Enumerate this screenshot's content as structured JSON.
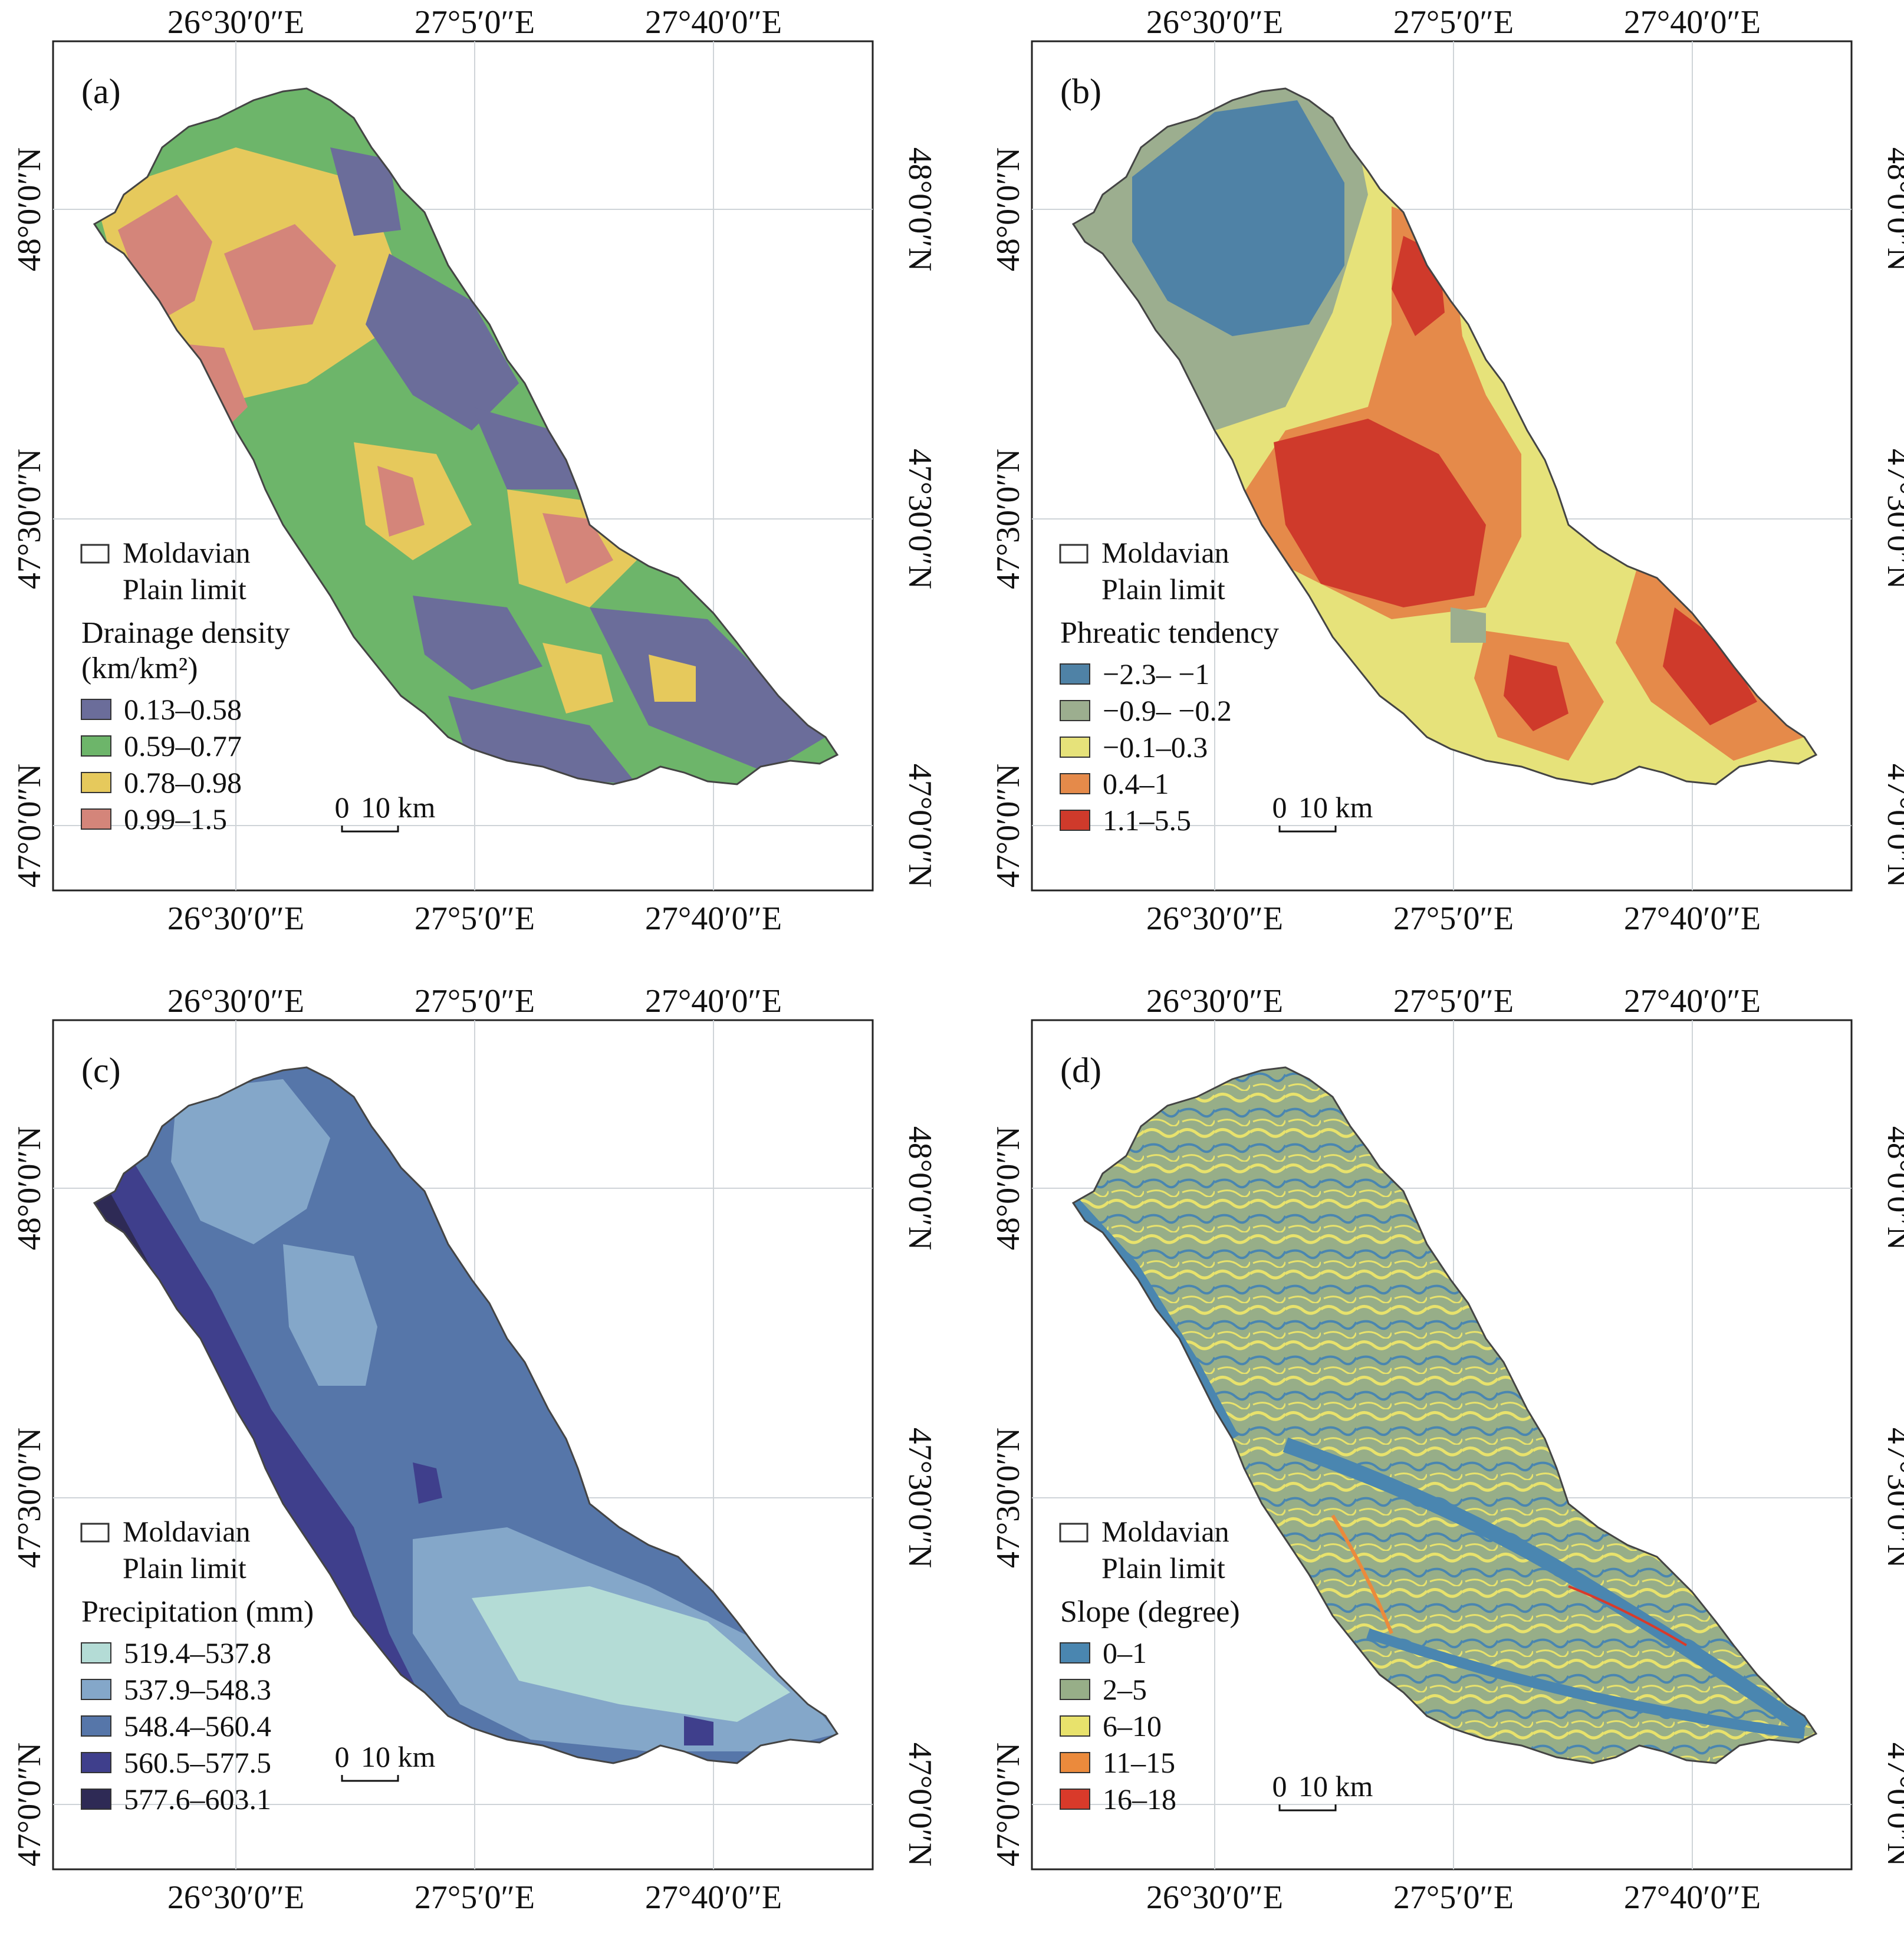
{
  "lon_labels": [
    "26°30′0″E",
    "27°5′0″E",
    "27°40′0″E"
  ],
  "lat_labels": [
    "48°0′0″N",
    "47°30′0″N",
    "47°0′0″N"
  ],
  "plain_limit_label": [
    "Moldavian",
    "Plain limit"
  ],
  "scale_bar": {
    "zero": "0",
    "value": "10 km"
  },
  "colors": {
    "drainage": [
      "#6b6d9a",
      "#6db56a",
      "#e6c95c",
      "#d4857a"
    ],
    "phreatic": [
      "#4f82a6",
      "#9cae8f",
      "#e6e27a",
      "#e58a4a",
      "#cf3a2b"
    ],
    "precipitation": [
      "#b4dcd6",
      "#84a7c9",
      "#5676a9",
      "#3f3f8c",
      "#2e2a55"
    ],
    "slope": [
      "#4a86b0",
      "#97ae88",
      "#e8e26c",
      "#eb8a3c",
      "#d93a2a"
    ]
  },
  "panels": [
    {
      "id": "a",
      "label": "(a)",
      "legend_title": [
        "Drainage density",
        "(km/km²)"
      ],
      "classes": [
        "0.13–0.58",
        "0.59–0.77",
        "0.78–0.98",
        "0.99–1.5"
      ]
    },
    {
      "id": "b",
      "label": "(b)",
      "legend_title": [
        "Phreatic tendency"
      ],
      "classes": [
        "−2.3– −1",
        "−0.9– −0.2",
        "−0.1–0.3",
        "0.4–1",
        "1.1–5.5"
      ]
    },
    {
      "id": "c",
      "label": "(c)",
      "legend_title": [
        "Precipitation (mm)"
      ],
      "classes": [
        "519.4–537.8",
        "537.9–548.3",
        "548.4–560.4",
        "560.5–577.5",
        "577.6–603.1"
      ]
    },
    {
      "id": "d",
      "label": "(d)",
      "legend_title": [
        "Slope (degree)"
      ],
      "classes": [
        "0–1",
        "2–5",
        "6–10",
        "11–15",
        "16–18"
      ]
    }
  ]
}
